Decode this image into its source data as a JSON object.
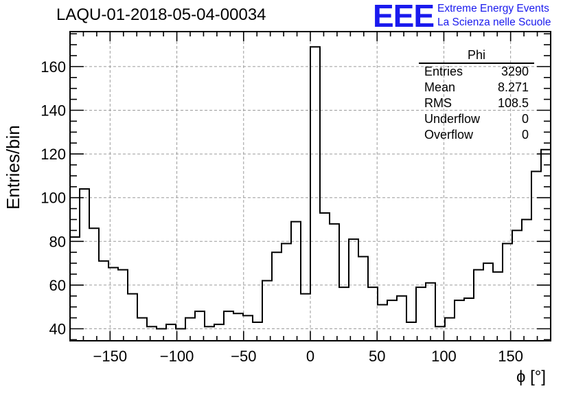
{
  "header": {
    "title": "LAQU-01-2018-05-04-00034",
    "logo_text": "EEE",
    "tagline_1": "Extreme Energy Events",
    "tagline_2": "La Scienza nelle Scuole"
  },
  "colors": {
    "logo": "#1a1aee",
    "histogram_line": "#000000",
    "grid": "#9a9a9a"
  },
  "stats": {
    "title": "Phi",
    "rows": [
      {
        "label": "Entries",
        "value": "3290"
      },
      {
        "label": "Mean",
        "value": "8.271"
      },
      {
        "label": "RMS",
        "value": "108.5"
      },
      {
        "label": "Underflow",
        "value": "0"
      },
      {
        "label": "Overflow",
        "value": "0"
      }
    ]
  },
  "chart_data": {
    "type": "histogram",
    "title": "LAQU-01-2018-05-04-00034",
    "xlabel": "ϕ [°]",
    "ylabel": "Entries/bin",
    "xlim": [
      -180,
      180
    ],
    "ylim": [
      34.5,
      176
    ],
    "bin_edges_start": -180,
    "bin_width": 7.2,
    "values": [
      82,
      104,
      86,
      71,
      68,
      67,
      56,
      45,
      41,
      40,
      42,
      40,
      45,
      48,
      41,
      42,
      48,
      47,
      46,
      43,
      62,
      75,
      79,
      89,
      56,
      169,
      93,
      88,
      59,
      81,
      73,
      59,
      51,
      53,
      55,
      43,
      59,
      61,
      41,
      45,
      53,
      54,
      67,
      70,
      66,
      79,
      85,
      90,
      112,
      122
    ],
    "x_ticks": [
      -150,
      -100,
      -50,
      0,
      50,
      100,
      150
    ],
    "x_tick_labels": [
      "−150",
      "−100",
      "−50",
      "0",
      "50",
      "100",
      "150"
    ],
    "y_ticks": [
      40,
      60,
      80,
      100,
      120,
      140,
      160
    ],
    "y_tick_labels": [
      "40",
      "60",
      "80",
      "100",
      "120",
      "140",
      "160"
    ],
    "grid": true,
    "legend": "none"
  }
}
